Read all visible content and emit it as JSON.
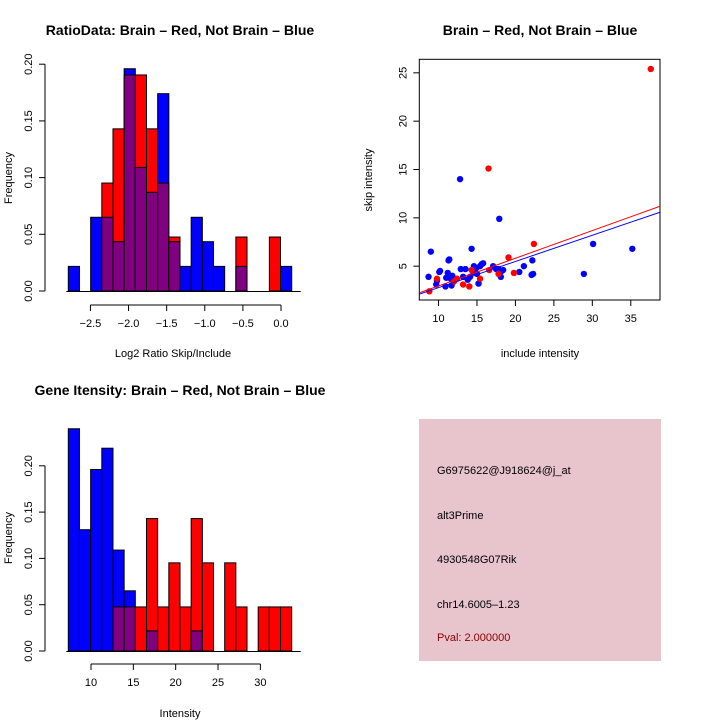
{
  "chart_data": [
    {
      "type": "bar",
      "subtype": "overlaid-histogram",
      "title": "RatioData: Brain – Red, Not Brain – Blue",
      "xlabel": "Log2 Ratio Skip/Include",
      "ylabel": "Frequency",
      "xlim": [
        -2.79,
        0.14
      ],
      "ylim": [
        0,
        0.2
      ],
      "xticks": [
        -2.5,
        -2.0,
        -1.5,
        -1.0,
        -0.5,
        0.0
      ],
      "xtick_labels": [
        "−2.5",
        "−2.0",
        "−1.5",
        "−1.0",
        "−0.5",
        "0.0"
      ],
      "yticks": [
        0.0,
        0.05,
        0.1,
        0.15,
        0.2
      ],
      "ytick_labels": [
        "0.00",
        "0.05",
        "0.10",
        "0.15",
        "0.20"
      ],
      "bin_start": -2.79,
      "bin_width": 0.1465,
      "series": [
        {
          "name": "Not Brain",
          "color": "#0000ff",
          "values": [
            0.0217,
            0,
            0.065,
            0.065,
            0.0435,
            0.196,
            0.109,
            0.087,
            0.174,
            0.0435,
            0.0217,
            0.065,
            0.0435,
            0.0217,
            0,
            0.0217,
            0,
            0,
            0,
            0.0217
          ]
        },
        {
          "name": "Brain",
          "color": "#ff0000",
          "values": [
            0,
            0,
            0,
            0.0952,
            0.143,
            0.1905,
            0.1905,
            0.143,
            0.0952,
            0.0476,
            0,
            0,
            0,
            0,
            0,
            0.0476,
            0,
            0,
            0.0476,
            0
          ]
        }
      ],
      "overlap_color": "#800080"
    },
    {
      "type": "scatter",
      "title": "Brain – Red, Not Brain – Blue",
      "xlabel": "include intensity",
      "ylabel": "skip intensity",
      "xlim": [
        7.5,
        38.8
      ],
      "ylim": [
        1.5,
        26.4
      ],
      "xticks": [
        10,
        15,
        20,
        25,
        30,
        35
      ],
      "yticks": [
        5,
        10,
        15,
        20,
        25
      ],
      "series": [
        {
          "name": "Not Brain",
          "color": "#0000ff",
          "points": [
            [
              8.7,
              3.9
            ],
            [
              9.0,
              6.5
            ],
            [
              9.7,
              3.1
            ],
            [
              9.8,
              3.5
            ],
            [
              10.1,
              4.4
            ],
            [
              10.2,
              4.5
            ],
            [
              10.9,
              2.9
            ],
            [
              11.0,
              3.8
            ],
            [
              11.2,
              4.3
            ],
            [
              11.3,
              5.6
            ],
            [
              11.4,
              5.7
            ],
            [
              11.6,
              3.7
            ],
            [
              11.7,
              3.0
            ],
            [
              11.8,
              4.0
            ],
            [
              12.8,
              14.0
            ],
            [
              12.9,
              4.7
            ],
            [
              13.2,
              3.9
            ],
            [
              13.5,
              4.7
            ],
            [
              13.8,
              3.6
            ],
            [
              14.1,
              3.9
            ],
            [
              14.3,
              6.8
            ],
            [
              14.5,
              4.4
            ],
            [
              14.6,
              5.0
            ],
            [
              14.9,
              4.8
            ],
            [
              15.0,
              4.2
            ],
            [
              15.2,
              3.2
            ],
            [
              15.4,
              5.0
            ],
            [
              15.6,
              5.2
            ],
            [
              15.8,
              5.3
            ],
            [
              17.1,
              5.0
            ],
            [
              17.5,
              4.7
            ],
            [
              17.8,
              4.7
            ],
            [
              17.9,
              9.9
            ],
            [
              18.1,
              3.9
            ],
            [
              18.2,
              4.5
            ],
            [
              18.4,
              4.6
            ],
            [
              20.5,
              4.4
            ],
            [
              21.1,
              5.0
            ],
            [
              22.1,
              4.1
            ],
            [
              22.3,
              4.2
            ],
            [
              22.2,
              5.6
            ],
            [
              28.9,
              4.2
            ],
            [
              30.1,
              7.3
            ],
            [
              35.2,
              6.8
            ]
          ]
        },
        {
          "name": "Brain",
          "color": "#ff0000",
          "points": [
            [
              8.8,
              2.4
            ],
            [
              9.8,
              3.7
            ],
            [
              12.0,
              3.4
            ],
            [
              12.4,
              3.7
            ],
            [
              13.2,
              3.1
            ],
            [
              14.0,
              2.9
            ],
            [
              14.3,
              4.6
            ],
            [
              15.4,
              3.7
            ],
            [
              16.5,
              15.1
            ],
            [
              16.6,
              4.6
            ],
            [
              17.8,
              4.2
            ],
            [
              19.1,
              5.9
            ],
            [
              19.8,
              4.3
            ],
            [
              22.4,
              7.3
            ],
            [
              37.6,
              25.4
            ]
          ]
        }
      ],
      "fit_lines": [
        {
          "name": "Brain fit",
          "color": "#ff0000",
          "from": [
            7.5,
            2.24
          ],
          "to": [
            38.8,
            11.2
          ]
        },
        {
          "name": "Not Brain fit",
          "color": "#0000ff",
          "from": [
            7.5,
            2.1
          ],
          "to": [
            38.8,
            10.58
          ]
        }
      ]
    },
    {
      "type": "bar",
      "subtype": "overlaid-histogram",
      "title": "Gene Itensity: Brain – Red, Not Brain – Blue",
      "xlabel": "Intensity",
      "ylabel": "Frequency",
      "xlim": [
        7.32,
        33.7
      ],
      "ylim": [
        0,
        0.24
      ],
      "xticks": [
        10,
        15,
        20,
        25,
        30
      ],
      "yticks": [
        0.0,
        0.05,
        0.1,
        0.15,
        0.2
      ],
      "ytick_labels": [
        "0.00",
        "0.05",
        "0.10",
        "0.15",
        "0.20"
      ],
      "bin_start": 7.32,
      "bin_width": 1.319,
      "series": [
        {
          "name": "Not Brain",
          "color": "#0000ff",
          "values": [
            0.24,
            0.131,
            0.196,
            0.219,
            0.109,
            0.065,
            0,
            0.0217,
            0,
            0,
            0,
            0.0217,
            0,
            0,
            0,
            0,
            0,
            0,
            0,
            0
          ]
        },
        {
          "name": "Brain",
          "color": "#ff0000",
          "values": [
            0,
            0,
            0,
            0,
            0.0476,
            0.0476,
            0.0476,
            0.143,
            0.0476,
            0.0952,
            0.0476,
            0.143,
            0.0952,
            0,
            0.0952,
            0.0476,
            0,
            0.0476,
            0.0476,
            0.0476
          ]
        }
      ],
      "overlap_color": "#800080"
    }
  ],
  "info_panel": {
    "background": "#e8c4cd",
    "probe_id": "G6975622@J918624@j_at",
    "event_type": "alt3Prime",
    "gene": "4930548G07Rik",
    "location": "chr14.6005–1.23",
    "pval": "Pval: 2.000000",
    "pval_color": "#8b0000"
  }
}
